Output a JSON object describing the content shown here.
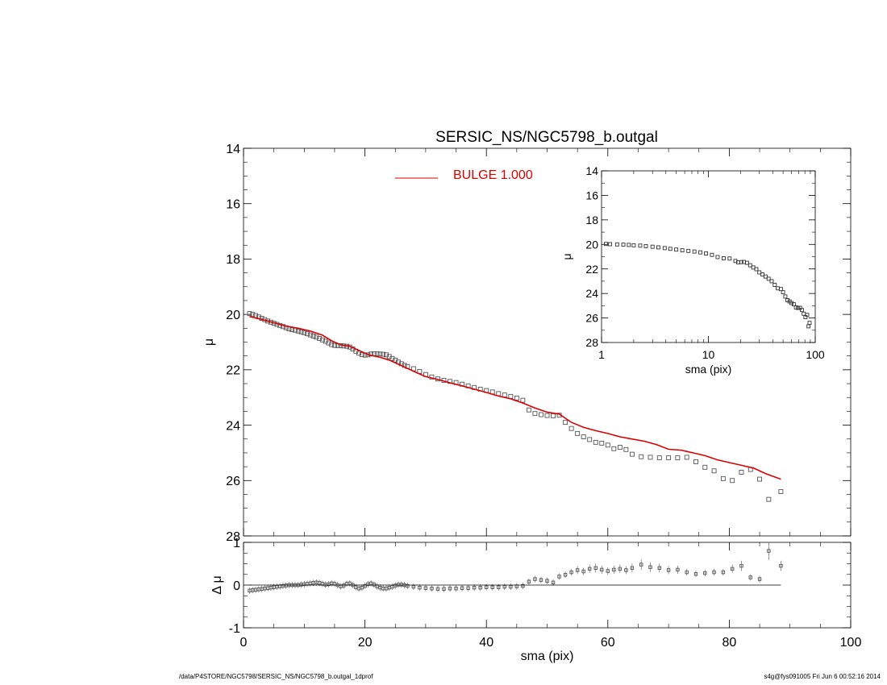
{
  "title": "SERSIC_NS/NGC5798_b.outgal",
  "footer": {
    "left": "/data/P4STORE/NGC5798/SERSIC_NS/NGC5798_b.outgal_1dprof",
    "right": "s4g@fys091005  Fri Jun  6 00:52:16 2014"
  },
  "colors": {
    "model": "#dd0000",
    "data": "#555555",
    "axis": "#000000"
  },
  "chart_data": [
    {
      "id": "main",
      "type": "scatter",
      "xlabel": "",
      "ylabel": "μ",
      "xlim": [
        0,
        100
      ],
      "ylim": [
        28,
        14
      ],
      "y_inverted": true,
      "xticks": [
        0,
        20,
        40,
        60,
        80,
        100
      ],
      "yticks": [
        14,
        16,
        18,
        20,
        22,
        24,
        26,
        28
      ],
      "legend": {
        "position": "top-center",
        "entries": [
          {
            "name": "BULGE  1.000",
            "color": "#dd0000"
          }
        ]
      },
      "series": [
        {
          "name": "data",
          "kind": "points",
          "x": [
            1.0,
            1.5,
            2.0,
            2.5,
            3.0,
            3.5,
            4.0,
            4.5,
            5.0,
            5.5,
            6.0,
            6.5,
            7.0,
            7.5,
            8.0,
            8.5,
            9.0,
            9.5,
            10.0,
            10.5,
            11.0,
            11.5,
            12.0,
            12.5,
            13.0,
            13.5,
            14.0,
            14.5,
            15.0,
            15.5,
            16.0,
            16.5,
            17.0,
            17.5,
            18.0,
            18.5,
            19.0,
            19.5,
            20.0,
            20.5,
            21.0,
            21.5,
            22.0,
            22.5,
            23.0,
            23.5,
            24.0,
            24.5,
            25.0,
            25.5,
            26.0,
            26.5,
            27.0,
            28.0,
            29.0,
            30.0,
            31.0,
            32.0,
            33.0,
            34.0,
            35.0,
            36.0,
            37.0,
            38.0,
            39.0,
            40.0,
            41.0,
            42.0,
            43.0,
            44.0,
            45.0,
            46.0,
            47.0,
            48.0,
            49.0,
            50.0,
            51.0,
            52.0,
            53.0,
            54.0,
            55.0,
            56.0,
            57.0,
            58.0,
            59.0,
            60.0,
            61.0,
            62.0,
            63.0,
            64.0,
            65.5,
            67.0,
            68.5,
            70.0,
            71.5,
            73.0,
            74.5,
            76.0,
            77.5,
            79.0,
            80.5,
            82.0,
            83.5,
            85.0,
            86.5,
            88.5
          ],
          "y": [
            19.97,
            20.0,
            20.04,
            20.09,
            20.14,
            20.19,
            20.24,
            20.28,
            20.32,
            20.36,
            20.4,
            20.44,
            20.48,
            20.52,
            20.55,
            20.57,
            20.6,
            20.63,
            20.66,
            20.7,
            20.74,
            20.78,
            20.82,
            20.87,
            20.92,
            20.97,
            21.03,
            21.09,
            21.12,
            21.13,
            21.13,
            21.14,
            21.15,
            21.18,
            21.25,
            21.33,
            21.4,
            21.45,
            21.47,
            21.46,
            21.43,
            21.42,
            21.42,
            21.43,
            21.44,
            21.46,
            21.52,
            21.59,
            21.65,
            21.72,
            21.78,
            21.84,
            21.88,
            21.96,
            22.06,
            22.17,
            22.26,
            22.33,
            22.38,
            22.42,
            22.46,
            22.52,
            22.58,
            22.64,
            22.7,
            22.75,
            22.8,
            22.86,
            22.91,
            22.96,
            23.02,
            23.1,
            23.45,
            23.58,
            23.62,
            23.65,
            23.66,
            23.64,
            23.9,
            24.12,
            24.3,
            24.42,
            24.52,
            24.62,
            24.65,
            24.72,
            24.85,
            24.8,
            24.88,
            25.05,
            25.14,
            25.16,
            25.18,
            25.18,
            25.18,
            25.16,
            25.32,
            25.52,
            25.65,
            25.93,
            26.0,
            25.7,
            25.6,
            25.95,
            26.68,
            26.4
          ]
        },
        {
          "name": "BULGE  1.000",
          "kind": "line",
          "x": [
            1.0,
            3.0,
            5.0,
            7.0,
            9.0,
            11.0,
            13.0,
            14.5,
            16.0,
            17.5,
            19.0,
            20.5,
            21.0,
            22.5,
            24.0,
            26.0,
            28.0,
            30.0,
            32.0,
            34.0,
            36.0,
            38.0,
            40.0,
            42.0,
            44.0,
            46.0,
            48.0,
            50.0,
            52.0,
            54.0,
            56.0,
            58.0,
            60.0,
            62.0,
            64.0,
            66.0,
            68.0,
            70.0,
            72.0,
            73.0,
            74.0,
            76.0,
            78.0,
            80.0,
            82.0,
            84.0,
            86.0,
            88.5
          ],
          "y": [
            20.08,
            20.18,
            20.3,
            20.42,
            20.5,
            20.6,
            20.75,
            20.95,
            21.1,
            21.15,
            21.3,
            21.45,
            21.48,
            21.55,
            21.65,
            21.85,
            22.05,
            22.25,
            22.35,
            22.47,
            22.58,
            22.7,
            22.82,
            22.95,
            23.05,
            23.2,
            23.38,
            23.53,
            23.6,
            23.9,
            24.08,
            24.2,
            24.3,
            24.42,
            24.5,
            24.58,
            24.7,
            24.87,
            24.9,
            24.95,
            25.0,
            25.1,
            25.25,
            25.35,
            25.45,
            25.55,
            25.75,
            25.95
          ]
        }
      ]
    },
    {
      "id": "inset",
      "type": "scatter",
      "xlabel": "sma (pix)",
      "ylabel": "μ",
      "xscale": "log",
      "xlim": [
        1,
        100
      ],
      "ylim": [
        28,
        14
      ],
      "y_inverted": true,
      "xticks": [
        1,
        10,
        100
      ],
      "yticks": [
        14,
        16,
        18,
        20,
        22,
        24,
        26,
        28
      ],
      "series": [
        {
          "name": "data",
          "kind": "points",
          "x": [
            1.1,
            1.2,
            1.4,
            1.6,
            1.8,
            2.0,
            2.3,
            2.6,
            3.0,
            3.4,
            3.9,
            4.4,
            5.0,
            5.7,
            6.5,
            7.4,
            8.4,
            9.5,
            10.8,
            12.2,
            13.9,
            15.8,
            17.9,
            19.0,
            20.3,
            21.5,
            23.0,
            24.6,
            26.3,
            28.1,
            30.0,
            32.1,
            34.3,
            36.6,
            39.1,
            41.8,
            44.6,
            47.7,
            50.0,
            52.5,
            55.0,
            57.5,
            60.0,
            63.0,
            66.0,
            69.0,
            72.0,
            75.0,
            78.0,
            81.0,
            84.0,
            86.5,
            88.5
          ],
          "y": [
            19.96,
            19.98,
            20.0,
            20.02,
            20.04,
            20.07,
            20.1,
            20.14,
            20.19,
            20.24,
            20.3,
            20.36,
            20.42,
            20.48,
            20.53,
            20.58,
            20.65,
            20.74,
            20.85,
            21.03,
            21.13,
            21.15,
            21.35,
            21.47,
            21.44,
            21.43,
            21.5,
            21.7,
            21.88,
            22.02,
            22.28,
            22.45,
            22.62,
            22.8,
            23.0,
            23.3,
            23.58,
            23.64,
            23.9,
            24.25,
            24.55,
            24.65,
            24.78,
            24.88,
            25.14,
            25.18,
            25.17,
            25.35,
            25.65,
            25.93,
            25.75,
            26.68,
            26.4
          ]
        }
      ]
    },
    {
      "id": "residual",
      "type": "scatter",
      "xlabel": "sma (pix)",
      "ylabel": "Δ μ",
      "xlim": [
        0,
        100
      ],
      "ylim": [
        -1,
        1
      ],
      "xticks": [
        0,
        20,
        40,
        60,
        80,
        100
      ],
      "yticks": [
        -1,
        0,
        1
      ],
      "series": [
        {
          "name": "residual",
          "kind": "points",
          "x": [
            1.0,
            1.5,
            2.0,
            2.5,
            3.0,
            3.5,
            4.0,
            4.5,
            5.0,
            5.5,
            6.0,
            6.5,
            7.0,
            7.5,
            8.0,
            8.5,
            9.0,
            9.5,
            10.0,
            10.5,
            11.0,
            11.5,
            12.0,
            12.5,
            13.0,
            13.5,
            14.0,
            14.5,
            15.0,
            15.5,
            16.0,
            16.5,
            17.0,
            17.5,
            18.0,
            18.5,
            19.0,
            19.5,
            20.0,
            20.5,
            21.0,
            21.5,
            22.0,
            22.5,
            23.0,
            23.5,
            24.0,
            24.5,
            25.0,
            25.5,
            26.0,
            26.5,
            27.0,
            28.0,
            29.0,
            30.0,
            31.0,
            32.0,
            33.0,
            34.0,
            35.0,
            36.0,
            37.0,
            38.0,
            39.0,
            40.0,
            41.0,
            42.0,
            43.0,
            44.0,
            45.0,
            46.0,
            47.0,
            48.0,
            49.0,
            50.0,
            51.0,
            52.0,
            53.0,
            54.0,
            55.0,
            56.0,
            57.0,
            58.0,
            59.0,
            60.0,
            61.0,
            62.0,
            63.0,
            64.0,
            65.5,
            67.0,
            68.5,
            70.0,
            71.5,
            73.0,
            74.5,
            76.0,
            77.5,
            79.0,
            80.5,
            82.0,
            83.5,
            85.0,
            86.5,
            88.5
          ],
          "y": [
            -0.13,
            -0.12,
            -0.11,
            -0.1,
            -0.09,
            -0.08,
            -0.07,
            -0.06,
            -0.05,
            -0.04,
            -0.03,
            -0.02,
            -0.01,
            0.0,
            0.0,
            0.0,
            0.0,
            0.01,
            0.02,
            0.03,
            0.04,
            0.05,
            0.06,
            0.05,
            0.03,
            0.01,
            0.02,
            0.04,
            0.03,
            0.0,
            -0.03,
            -0.01,
            0.03,
            0.04,
            0.0,
            -0.05,
            -0.08,
            -0.06,
            -0.02,
            0.02,
            0.04,
            0.01,
            -0.03,
            -0.06,
            -0.08,
            -0.08,
            -0.06,
            -0.04,
            -0.01,
            0.01,
            0.01,
            0.0,
            -0.02,
            -0.04,
            -0.06,
            -0.07,
            -0.08,
            -0.09,
            -0.09,
            -0.08,
            -0.08,
            -0.07,
            -0.07,
            -0.06,
            -0.06,
            -0.05,
            -0.05,
            -0.05,
            -0.04,
            -0.04,
            -0.03,
            -0.02,
            0.08,
            0.14,
            0.12,
            0.1,
            0.06,
            0.2,
            0.24,
            0.3,
            0.35,
            0.32,
            0.38,
            0.4,
            0.36,
            0.33,
            0.36,
            0.38,
            0.35,
            0.4,
            0.48,
            0.42,
            0.4,
            0.35,
            0.36,
            0.3,
            0.26,
            0.28,
            0.3,
            0.3,
            0.38,
            0.45,
            0.18,
            0.14,
            0.8,
            0.45
          ]
        },
        {
          "name": "zero",
          "kind": "line",
          "x": [
            1,
            88.5
          ],
          "y": [
            0,
            0
          ]
        }
      ]
    }
  ]
}
